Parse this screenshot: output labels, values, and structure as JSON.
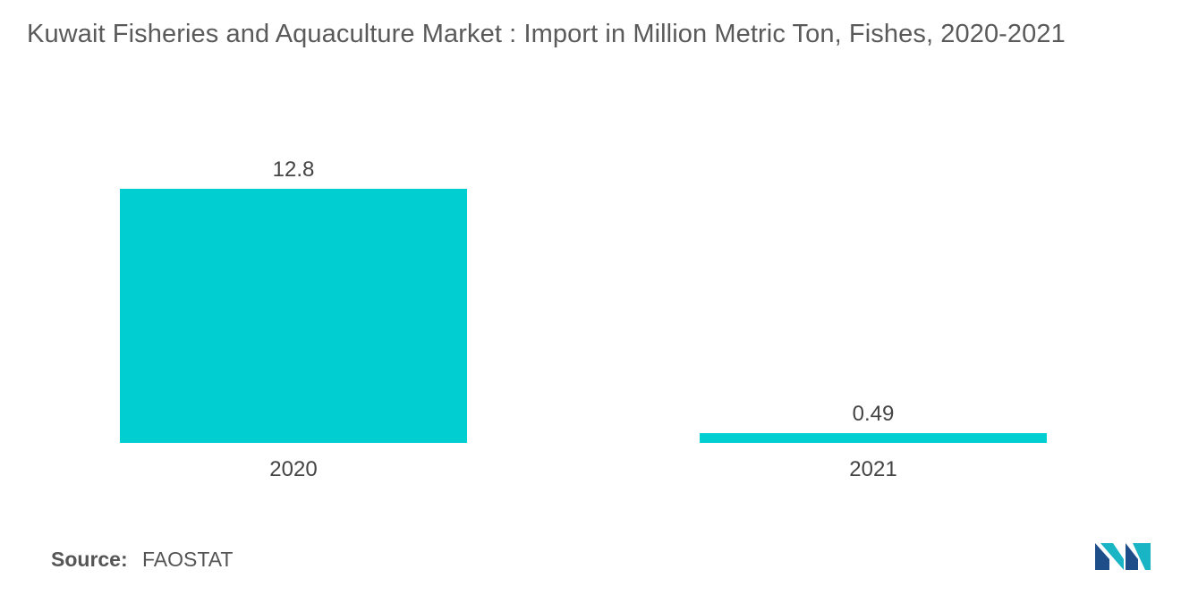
{
  "title": "Kuwait Fisheries and Aquaculture Market : Import in Million Metric Ton, Fishes, 2020-2021",
  "source": {
    "label": "Source:",
    "value": "FAOSTAT"
  },
  "logo": {
    "icon": "mordor-intelligence-logo-icon",
    "colors": [
      "#1d4e89",
      "#19b5c5"
    ]
  },
  "chart_data": {
    "type": "bar",
    "title": "Kuwait Fisheries and Aquaculture Market : Import in Million Metric Ton, Fishes, 2020-2021",
    "xlabel": "",
    "ylabel": "",
    "categories": [
      "2020",
      "2021"
    ],
    "values": [
      12.8,
      0.49
    ],
    "data_labels": [
      "12.8",
      "0.49"
    ],
    "ylim": [
      0,
      12.8
    ],
    "bar_color": "#00ced1",
    "grid": false,
    "legend": "none"
  }
}
